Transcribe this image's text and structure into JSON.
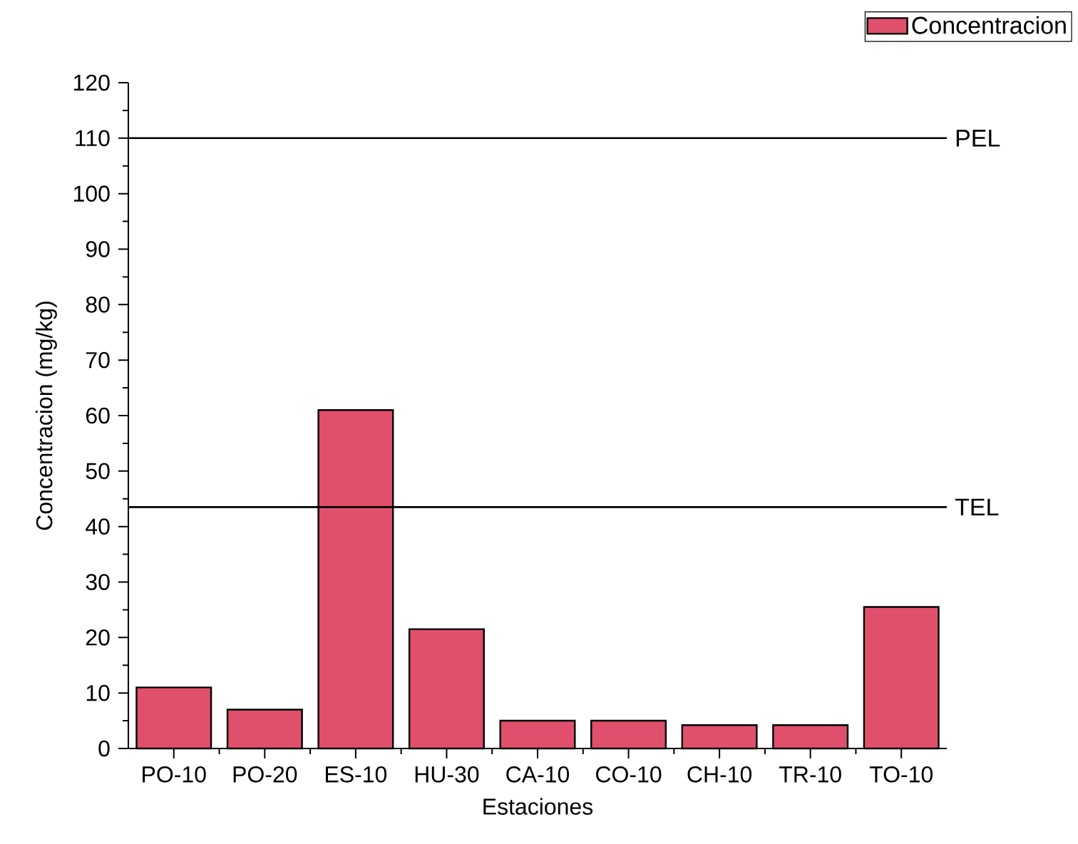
{
  "chart_data": {
    "type": "bar",
    "xlabel": "Estaciones",
    "ylabel": "Concentracion (mg/kg)",
    "categories": [
      "PO-10",
      "PO-20",
      "ES-10",
      "HU-30",
      "CA-10",
      "CO-10",
      "CH-10",
      "TR-10",
      "TO-10"
    ],
    "series": [
      {
        "name": "Concentracion",
        "color": "#e0506c",
        "values": [
          11,
          7,
          61,
          21.5,
          5,
          5,
          4.2,
          4.2,
          25.5
        ]
      }
    ],
    "ylim": [
      0,
      120
    ],
    "yticks": [
      0,
      10,
      20,
      30,
      40,
      50,
      60,
      70,
      80,
      90,
      100,
      110,
      120
    ],
    "ref_lines": [
      {
        "axis": "y",
        "value": 110,
        "label": "PEL"
      },
      {
        "axis": "y",
        "value": 43.5,
        "label": "TEL"
      }
    ],
    "legend": "top right",
    "grid": false
  }
}
